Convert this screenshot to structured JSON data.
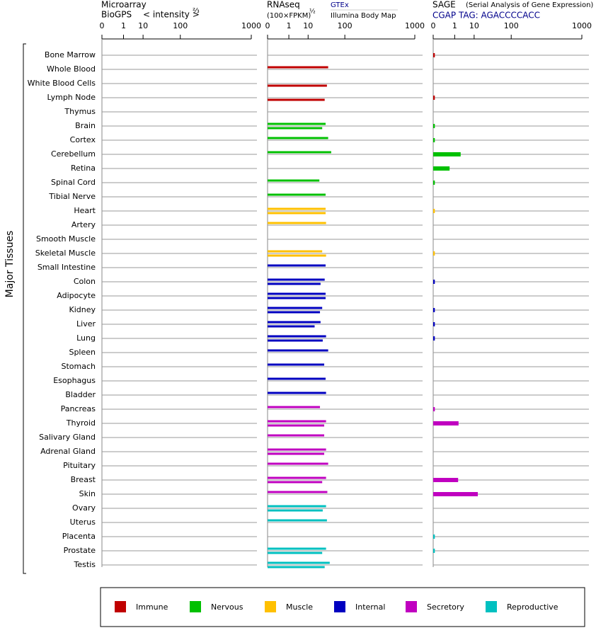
{
  "chart_data": {
    "type": "bar",
    "orientation": "horizontal",
    "axis_label": "Major Tissues",
    "categories": [
      "Bone Marrow",
      "Whole Blood",
      "White Blood Cells",
      "Lymph Node",
      "Thymus",
      "Brain",
      "Cortex",
      "Cerebellum",
      "Retina",
      "Spinal Cord",
      "Tibial Nerve",
      "Heart",
      "Artery",
      "Smooth Muscle",
      "Skeletal Muscle",
      "Small Intestine",
      "Colon",
      "Adipocyte",
      "Kidney",
      "Liver",
      "Lung",
      "Spleen",
      "Stomach",
      "Esophagus",
      "Bladder",
      "Pancreas",
      "Thyroid",
      "Salivary Gland",
      "Adrenal Gland",
      "Pituitary",
      "Breast",
      "Skin",
      "Ovary",
      "Uterus",
      "Placenta",
      "Prostate",
      "Testis"
    ],
    "colors": [
      "#c00000",
      "#c00000",
      "#c00000",
      "#c00000",
      "#c00000",
      "#00c000",
      "#00c000",
      "#00c000",
      "#00c000",
      "#00c000",
      "#00c000",
      "#ffc000",
      "#ffc000",
      "#ffc000",
      "#ffc000",
      "#0000c0",
      "#0000c0",
      "#0000c0",
      "#0000c0",
      "#0000c0",
      "#0000c0",
      "#0000c0",
      "#0000c0",
      "#0000c0",
      "#0000c0",
      "#c000c0",
      "#c000c0",
      "#c000c0",
      "#c000c0",
      "#c000c0",
      "#c000c0",
      "#c000c0",
      "#00c0c0",
      "#00c0c0",
      "#00c0c0",
      "#00c0c0",
      "#00c0c0"
    ],
    "legend": [
      {
        "name": "Immune",
        "color": "#c00000"
      },
      {
        "name": "Nervous",
        "color": "#00c000"
      },
      {
        "name": "Muscle",
        "color": "#ffc000"
      },
      {
        "name": "Internal",
        "color": "#0000c0"
      },
      {
        "name": "Secretory",
        "color": "#c000c0"
      },
      {
        "name": "Reproductive",
        "color": "#00c0c0"
      }
    ],
    "panels": [
      {
        "title": "Microarray",
        "subtitle": "BioGPS",
        "scale_label": "< intensity >",
        "exponent_label": "⅔",
        "xlim": [
          0,
          1000
        ],
        "xticks": [
          0,
          1,
          10,
          100,
          1000
        ],
        "series": []
      },
      {
        "title": "RNAseq",
        "subtitle": "(100×FPKM)",
        "exponent_label": "½",
        "xlim": [
          0,
          1000
        ],
        "xticks": [
          0,
          1,
          10,
          100,
          1000
        ],
        "series": [
          {
            "name": "GTEx",
            "values": [
              null,
              42,
              null,
              null,
              null,
              36,
              42,
              50,
              null,
              24,
              36,
              36,
              37,
              null,
              29,
              36,
              34,
              36,
              29,
              26,
              37,
              42,
              33,
              36,
              37,
              25,
              37,
              33,
              37,
              42,
              37,
              40,
              37,
              39,
              null,
              37,
              46
            ]
          },
          {
            "name": "Illumina Body Map",
            "values": [
              null,
              null,
              39,
              34,
              null,
              29,
              null,
              null,
              null,
              null,
              null,
              36,
              null,
              null,
              37,
              null,
              26,
              36,
              25,
              17,
              30,
              null,
              null,
              null,
              null,
              null,
              33,
              null,
              33,
              null,
              29,
              null,
              30,
              null,
              null,
              29,
              34
            ]
          }
        ]
      },
      {
        "title": "SAGE",
        "note": "(Serial Analysis of Gene Expression)",
        "subtitle": "CGAP TAG: AGACCCCACC",
        "xlim": [
          0,
          1000
        ],
        "xticks": [
          0,
          1,
          10,
          100,
          1000
        ],
        "series": [
          {
            "values": [
              0.0001,
              null,
              null,
              0.0001,
              null,
              0.0001,
              0.0001,
              2.4,
              0.38,
              0.0001,
              null,
              0.0001,
              null,
              null,
              0.0001,
              null,
              0.0001,
              null,
              0.0001,
              0.0001,
              0.0001,
              null,
              null,
              null,
              null,
              0.0001,
              1.8,
              null,
              null,
              null,
              1.7,
              13.6,
              null,
              null,
              0.0001,
              0.0001,
              null
            ]
          }
        ]
      }
    ]
  }
}
